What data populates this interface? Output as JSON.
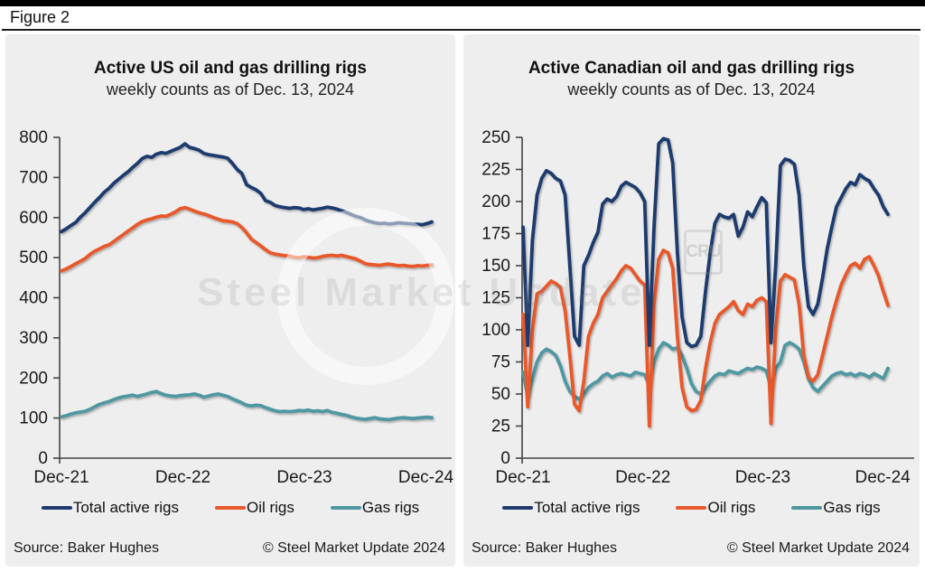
{
  "figure_label": "Figure 2",
  "footer": {
    "source": "Source: Baker Hughes",
    "copyright": "© Steel Market Update 2024"
  },
  "watermark": {
    "text": "Steel Market Update",
    "logo_text": "CRU"
  },
  "colors": {
    "total_rigs": "#1f3a6e",
    "oil_rigs": "#e8592b",
    "gas_rigs": "#4f98a2",
    "panel_background": "#eeeeee",
    "top_bar": "#000000",
    "axis": "#444444",
    "tick_text": "#1a1a1a"
  },
  "chart_data": [
    {
      "type": "line",
      "title": "Active US oil and gas drilling rigs",
      "subtitle": "weekly counts as of Dec. 13, 2024",
      "x_tick_labels": [
        "Dec-21",
        "Dec-22",
        "Dec-23",
        "Dec-24"
      ],
      "ylim": [
        0,
        800
      ],
      "yticks": [
        0,
        100,
        200,
        300,
        400,
        500,
        600,
        700,
        800
      ],
      "grid": false,
      "legend_position": "bottom",
      "series": [
        {
          "name": "Total active rigs",
          "color": "#1f3a6e",
          "values": [
            565,
            572,
            580,
            588,
            601,
            612,
            625,
            638,
            650,
            663,
            673,
            685,
            695,
            705,
            714,
            725,
            735,
            747,
            753,
            750,
            758,
            762,
            760,
            765,
            770,
            775,
            784,
            775,
            772,
            768,
            760,
            757,
            755,
            753,
            751,
            748,
            735,
            720,
            710,
            682,
            675,
            669,
            660,
            642,
            638,
            630,
            627,
            625,
            623,
            625,
            624,
            620,
            622,
            619,
            621,
            623,
            626,
            624,
            621,
            617,
            613,
            608,
            603,
            600,
            594,
            590,
            587,
            585,
            586,
            584,
            585,
            587,
            586,
            585,
            584,
            583,
            582,
            585,
            589
          ]
        },
        {
          "name": "Oil rigs",
          "color": "#e8592b",
          "values": [
            467,
            472,
            478,
            485,
            491,
            498,
            508,
            516,
            522,
            528,
            532,
            540,
            549,
            557,
            566,
            574,
            583,
            590,
            594,
            597,
            601,
            604,
            603,
            608,
            614,
            622,
            625,
            621,
            616,
            612,
            609,
            605,
            600,
            596,
            592,
            591,
            589,
            585,
            575,
            562,
            546,
            538,
            529,
            520,
            512,
            509,
            507,
            505,
            504,
            501,
            500,
            502,
            501,
            499,
            500,
            503,
            505,
            506,
            504,
            506,
            503,
            500,
            497,
            491,
            485,
            483,
            482,
            481,
            483,
            484,
            482,
            480,
            481,
            479,
            478,
            480,
            479,
            481,
            482
          ]
        },
        {
          "name": "Gas rigs",
          "color": "#4f98a2",
          "values": [
            103,
            106,
            110,
            113,
            115,
            117,
            122,
            128,
            134,
            138,
            141,
            146,
            150,
            153,
            155,
            157,
            154,
            157,
            160,
            164,
            166,
            161,
            157,
            155,
            154,
            156,
            157,
            158,
            160,
            157,
            152,
            155,
            158,
            160,
            157,
            154,
            148,
            143,
            138,
            132,
            130,
            132,
            131,
            126,
            122,
            118,
            116,
            117,
            116,
            117,
            119,
            118,
            120,
            117,
            118,
            116,
            119,
            114,
            112,
            109,
            107,
            103,
            100,
            98,
            97,
            99,
            101,
            98,
            97,
            96,
            98,
            100,
            101,
            100,
            99,
            100,
            101,
            102,
            101
          ]
        }
      ]
    },
    {
      "type": "line",
      "title": "Active Canadian oil and gas drilling rigs",
      "subtitle": "weekly counts as of Dec. 13, 2024",
      "x_tick_labels": [
        "Dec-21",
        "Dec-22",
        "Dec-23",
        "Dec-24"
      ],
      "ylim": [
        0,
        250
      ],
      "yticks": [
        0,
        25,
        50,
        75,
        100,
        125,
        150,
        175,
        200,
        225,
        250
      ],
      "grid": false,
      "legend_position": "bottom",
      "series": [
        {
          "name": "Total active rigs",
          "color": "#1f3a6e",
          "values": [
            180,
            88,
            170,
            205,
            218,
            224,
            222,
            218,
            216,
            205,
            150,
            95,
            88,
            150,
            158,
            168,
            176,
            198,
            202,
            200,
            204,
            212,
            215,
            213,
            211,
            207,
            200,
            88,
            180,
            245,
            249,
            248,
            230,
            160,
            110,
            90,
            87,
            88,
            95,
            130,
            160,
            183,
            190,
            188,
            187,
            190,
            173,
            180,
            192,
            188,
            196,
            203,
            199,
            90,
            150,
            228,
            233,
            232,
            229,
            205,
            150,
            118,
            112,
            120,
            140,
            163,
            180,
            196,
            203,
            210,
            215,
            213,
            221,
            218,
            216,
            210,
            205,
            196,
            190
          ]
        },
        {
          "name": "Oil rigs",
          "color": "#e8592b",
          "values": [
            112,
            40,
            100,
            128,
            130,
            134,
            138,
            136,
            133,
            115,
            80,
            42,
            37,
            60,
            95,
            105,
            112,
            125,
            130,
            135,
            140,
            146,
            150,
            148,
            143,
            138,
            135,
            25,
            120,
            155,
            162,
            160,
            148,
            95,
            55,
            40,
            37,
            38,
            45,
            70,
            90,
            105,
            112,
            115,
            118,
            122,
            115,
            112,
            120,
            118,
            123,
            125,
            122,
            27,
            100,
            138,
            143,
            141,
            139,
            120,
            80,
            63,
            60,
            65,
            80,
            95,
            110,
            123,
            135,
            143,
            150,
            152,
            148,
            155,
            157,
            150,
            142,
            130,
            119
          ]
        },
        {
          "name": "Gas rigs",
          "color": "#4f98a2",
          "values": [
            67,
            48,
            62,
            75,
            82,
            85,
            83,
            80,
            72,
            60,
            52,
            48,
            46,
            50,
            55,
            58,
            60,
            64,
            66,
            63,
            65,
            66,
            65,
            64,
            67,
            66,
            65,
            57,
            75,
            85,
            90,
            88,
            85,
            86,
            80,
            70,
            58,
            52,
            50,
            55,
            60,
            64,
            66,
            65,
            68,
            67,
            66,
            68,
            70,
            69,
            71,
            70,
            68,
            55,
            70,
            75,
            88,
            90,
            88,
            85,
            75,
            62,
            55,
            52,
            56,
            60,
            64,
            66,
            67,
            65,
            66,
            64,
            66,
            65,
            63,
            66,
            64,
            62,
            70
          ]
        }
      ]
    }
  ]
}
